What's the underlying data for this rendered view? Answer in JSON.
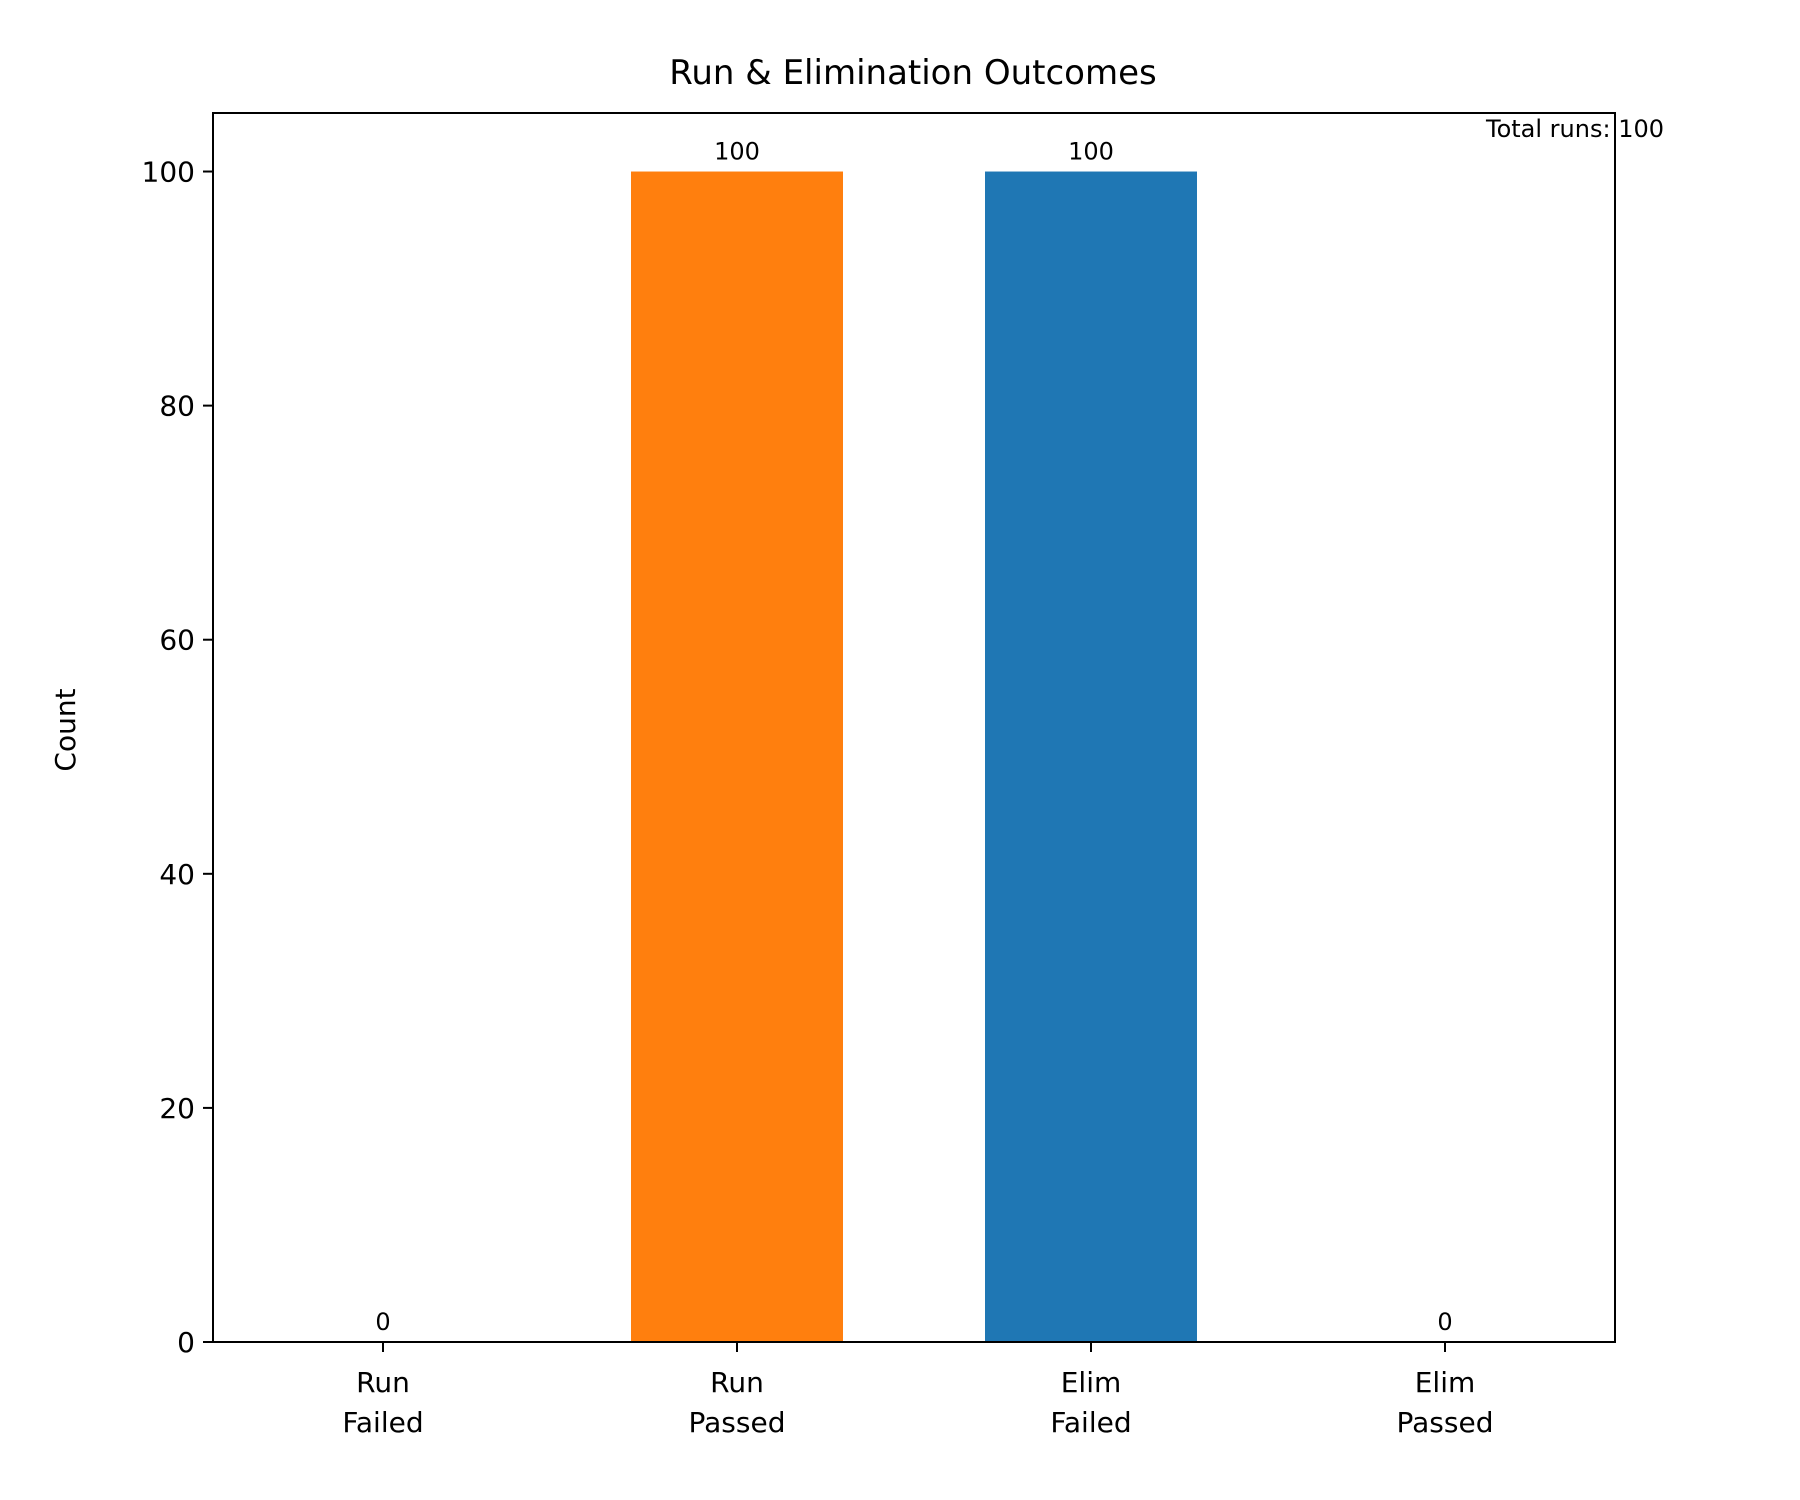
{
  "chart_data": {
    "type": "bar",
    "title": "Run & Elimination Outcomes",
    "xlabel": "",
    "ylabel": "Count",
    "categories": [
      [
        "Run",
        "Failed"
      ],
      [
        "Run",
        "Passed"
      ],
      [
        "Elim",
        "Failed"
      ],
      [
        "Elim",
        "Passed"
      ]
    ],
    "values": [
      0,
      100,
      100,
      0
    ],
    "bar_colors": [
      "#ff7f0e",
      "#ff7f0e",
      "#1f77b4",
      "#1f77b4"
    ],
    "ylim": [
      0,
      105
    ],
    "yticks": [
      0,
      20,
      40,
      60,
      80,
      100
    ],
    "grid": false,
    "legend": "none",
    "annotation": "Total runs: 100"
  }
}
